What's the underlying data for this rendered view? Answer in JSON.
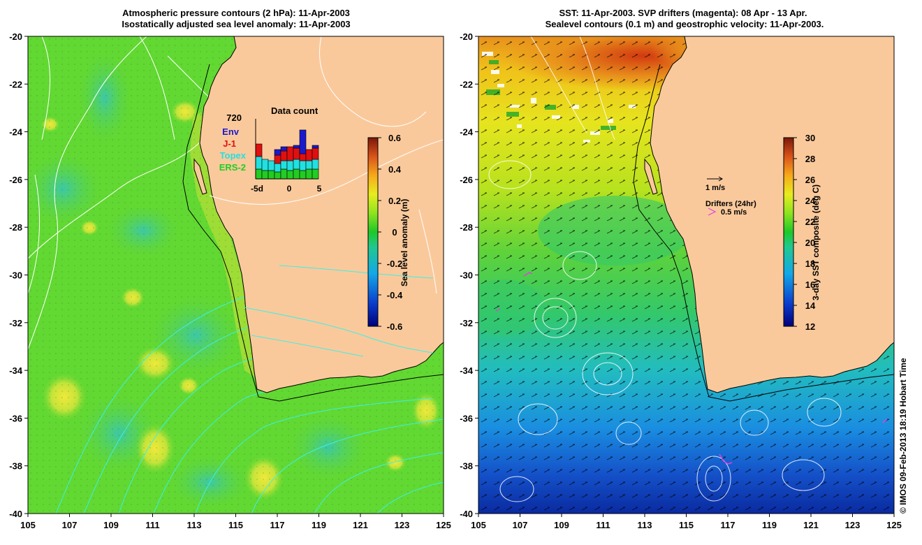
{
  "left_panel": {
    "title_line1": "Atmospheric pressure contours (2 hPa): 11-Apr-2003",
    "title_line2": "Isostatically adjusted sea level anomaly: 11-Apr-2003",
    "colorbar": {
      "label": "Sea level anomaly (m)",
      "ticks": [
        "0.6",
        "0.4",
        "0.2",
        "0",
        "-0.2",
        "-0.4",
        "-0.6"
      ],
      "range": [
        -0.6,
        0.6
      ]
    },
    "inset": {
      "title": "Data count",
      "max_label": "720",
      "x_ticks": [
        "-5d",
        "0",
        "5"
      ],
      "legend": [
        {
          "label": "Env",
          "color": "#1a1acc"
        },
        {
          "label": "J-1",
          "color": "#e01010"
        },
        {
          "label": "Topex",
          "color": "#22e0e0"
        },
        {
          "label": "ERS-2",
          "color": "#22cc22"
        }
      ]
    }
  },
  "right_panel": {
    "title_line1": "SST: 11-Apr-2003. SVP drifters (magenta): 08 Apr - 13 Apr.",
    "title_line2": "Sealevel contours (0.1 m) and geostrophic velocity: 11-Apr-2003.",
    "colorbar": {
      "label": "3-day SST composite (deg C)",
      "ticks": [
        "30",
        "28",
        "26",
        "24",
        "22",
        "20",
        "18",
        "16",
        "14",
        "12"
      ],
      "range": [
        12,
        30
      ]
    },
    "velocity_scale_label": "1 m/s",
    "drifters_label": "Drifters (24hr)",
    "drifter_scale_label": "0.5 m/s"
  },
  "axes": {
    "x_ticks": [
      "105",
      "107",
      "109",
      "111",
      "113",
      "115",
      "117",
      "119",
      "121",
      "123",
      "125"
    ],
    "y_ticks": [
      "-20",
      "-22",
      "-24",
      "-26",
      "-28",
      "-30",
      "-32",
      "-34",
      "-36",
      "-38",
      "-40"
    ],
    "lon_range": [
      105,
      125
    ],
    "lat_range": [
      -40,
      -20
    ]
  },
  "colors": {
    "land": "#fac99b",
    "sla_base": "#62d832",
    "coast": "#000000"
  },
  "footer": "© IMOS 09-Feb-2013 18:19 Hobart Time"
}
